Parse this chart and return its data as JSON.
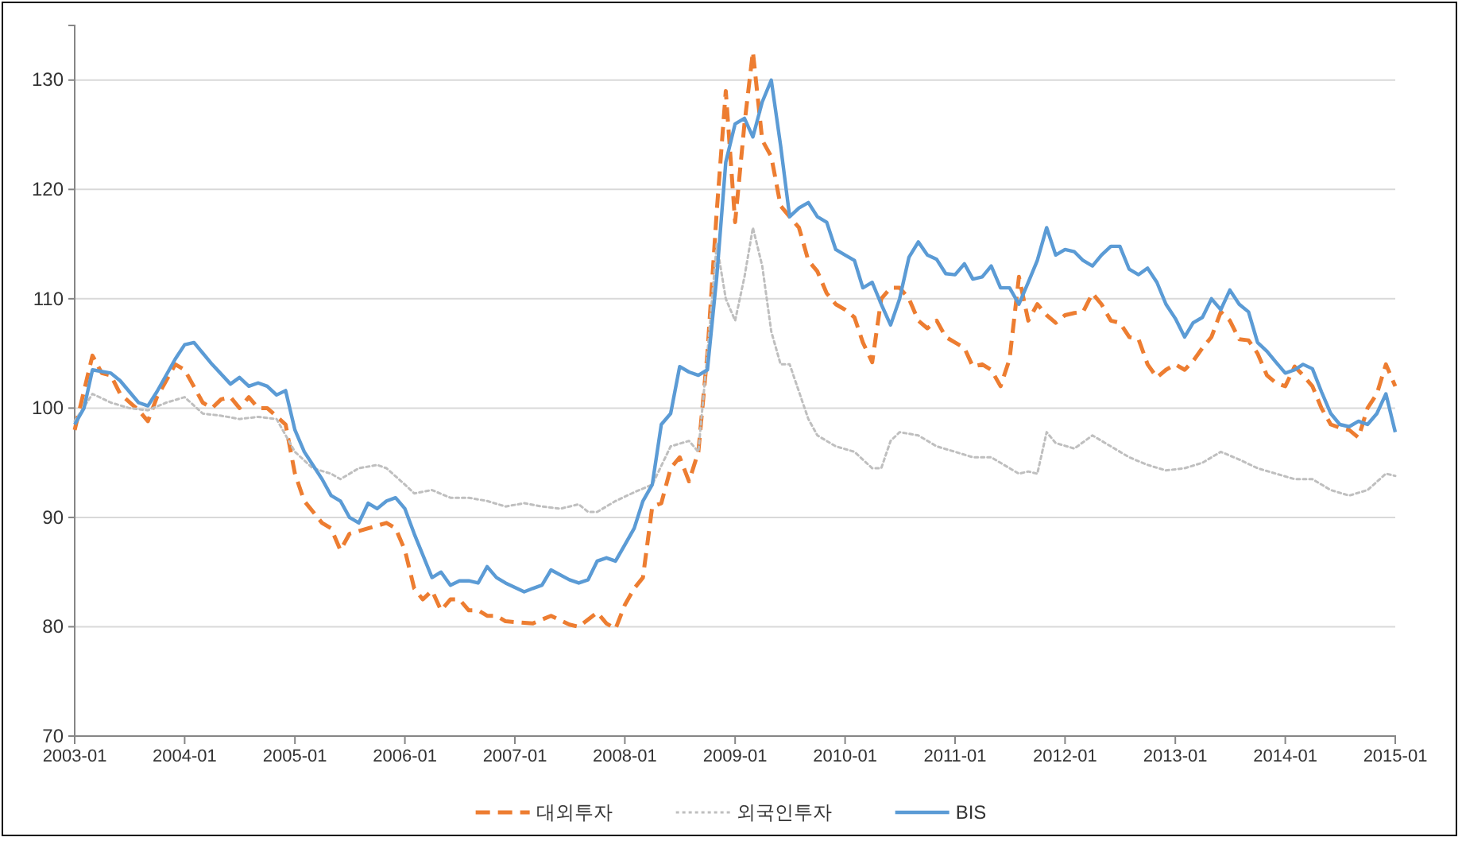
{
  "chart_data": {
    "type": "line",
    "xlim": [
      "2003-01",
      "2015-01"
    ],
    "ylim": [
      70,
      135
    ],
    "yticks": [
      70,
      80,
      90,
      100,
      110,
      120,
      130
    ],
    "xticks": [
      "2003-01",
      "2004-01",
      "2005-01",
      "2006-01",
      "2007-01",
      "2008-01",
      "2009-01",
      "2010-01",
      "2011-01",
      "2012-01",
      "2013-01",
      "2014-01",
      "2015-01"
    ],
    "grid": "y",
    "legend": "bottom",
    "marker": "none",
    "series": [
      {
        "name": "대외투자",
        "color": "#ed7d31",
        "line_style": "dashed",
        "x": [
          "2003-01",
          "2003-03",
          "2003-04",
          "2003-05",
          "2003-06",
          "2003-08",
          "2003-09",
          "2003-10",
          "2003-12",
          "2004-01",
          "2004-03",
          "2004-04",
          "2004-05",
          "2004-06",
          "2004-07",
          "2004-08",
          "2004-09",
          "2004-10",
          "2004-12",
          "2005-01",
          "2005-02",
          "2005-04",
          "2005-05",
          "2005-06",
          "2005-07",
          "2005-09",
          "2005-11",
          "2005-12",
          "2006-01",
          "2006-02",
          "2006-03",
          "2006-04",
          "2006-05",
          "2006-06",
          "2006-07",
          "2006-08",
          "2006-09",
          "2006-10",
          "2006-11",
          "2006-12",
          "2007-03",
          "2007-05",
          "2007-07",
          "2007-08",
          "2007-10",
          "2007-11",
          "2007-12",
          "2008-01",
          "2008-02",
          "2008-03",
          "2008-04",
          "2008-05",
          "2008-06",
          "2008-07",
          "2008-08",
          "2008-09",
          "2008-10",
          "2008-11",
          "2008-12",
          "2009-01",
          "2009-02",
          "2009-03",
          "2009-04",
          "2009-05",
          "2009-06",
          "2009-07",
          "2009-08",
          "2009-09",
          "2009-10",
          "2009-11",
          "2009-12",
          "2010-01",
          "2010-02",
          "2010-03",
          "2010-04",
          "2010-05",
          "2010-06",
          "2010-07",
          "2010-08",
          "2010-09",
          "2010-10",
          "2010-11",
          "2010-12",
          "2011-01",
          "2011-02",
          "2011-03",
          "2011-04",
          "2011-05",
          "2011-06",
          "2011-07",
          "2011-08",
          "2011-09",
          "2011-10",
          "2011-11",
          "2011-12",
          "2012-01",
          "2012-02",
          "2012-03",
          "2012-04",
          "2012-05",
          "2012-06",
          "2012-07",
          "2012-08",
          "2012-09",
          "2012-10",
          "2012-11",
          "2012-12",
          "2013-01",
          "2013-02",
          "2013-03",
          "2013-04",
          "2013-05",
          "2013-06",
          "2013-07",
          "2013-08",
          "2013-09",
          "2013-10",
          "2013-11",
          "2013-12",
          "2014-01",
          "2014-02",
          "2014-03",
          "2014-04",
          "2014-05",
          "2014-06",
          "2014-07",
          "2014-08",
          "2014-09",
          "2014-10",
          "2014-11",
          "2014-12",
          "2015-01"
        ],
        "values": [
          98,
          104.8,
          103.2,
          103,
          101.3,
          99.8,
          98.8,
          101,
          104,
          103.5,
          100.5,
          100,
          100.8,
          101,
          100,
          101,
          100,
          100,
          98.5,
          94,
          91.5,
          89.5,
          89,
          87,
          88.5,
          89,
          89.5,
          89,
          87,
          83.5,
          82.5,
          83.3,
          81.5,
          82.5,
          82.5,
          81.5,
          81.5,
          81,
          81,
          80.5,
          80.3,
          81,
          80.2,
          80,
          81.3,
          80.3,
          79.8,
          82,
          83.5,
          84.5,
          91,
          91.3,
          94.5,
          95.5,
          93.3,
          96,
          105,
          118,
          129,
          117,
          126,
          132.6,
          124.5,
          123,
          118.5,
          117.5,
          116.5,
          113.5,
          112.5,
          110.5,
          109.5,
          109,
          108.3,
          106,
          104.2,
          110,
          111,
          111,
          110,
          108,
          107.3,
          108,
          106.5,
          106,
          105.5,
          103.8,
          104,
          103.5,
          102,
          104.5,
          112,
          108,
          109.5,
          108.5,
          107.8,
          108.5,
          108.7,
          108.8,
          110.5,
          109.5,
          108,
          107.8,
          106.5,
          106.3,
          104,
          102.8,
          103.5,
          104,
          103.5,
          104.3,
          105.5,
          106.5,
          108.8,
          108,
          106.3,
          106.2,
          105,
          103,
          102.3,
          102,
          103.8,
          103,
          102,
          100,
          98.5,
          98.2,
          98,
          97.3,
          100,
          101.3,
          104,
          102
        ]
      },
      {
        "name": "외국인투자",
        "color": "#bfbfbf",
        "line_style": "dotted",
        "x": [
          "2003-01",
          "2003-03",
          "2003-05",
          "2003-07",
          "2003-09",
          "2003-11",
          "2004-01",
          "2004-03",
          "2004-05",
          "2004-07",
          "2004-09",
          "2004-11",
          "2005-01",
          "2005-03",
          "2005-05",
          "2005-06",
          "2005-08",
          "2005-10",
          "2005-11",
          "2006-01",
          "2006-02",
          "2006-04",
          "2006-06",
          "2006-08",
          "2006-10",
          "2006-12",
          "2007-02",
          "2007-04",
          "2007-06",
          "2007-08",
          "2007-09",
          "2007-10",
          "2007-12",
          "2008-02",
          "2008-04",
          "2008-06",
          "2008-08",
          "2008-09",
          "2008-10",
          "2008-11",
          "2008-12",
          "2009-01",
          "2009-02",
          "2009-03",
          "2009-04",
          "2009-05",
          "2009-06",
          "2009-07",
          "2009-08",
          "2009-09",
          "2009-10",
          "2009-12",
          "2010-02",
          "2010-04",
          "2010-05",
          "2010-06",
          "2010-07",
          "2010-09",
          "2010-11",
          "2011-01",
          "2011-03",
          "2011-05",
          "2011-07",
          "2011-08",
          "2011-09",
          "2011-10",
          "2011-11",
          "2011-12",
          "2012-02",
          "2012-04",
          "2012-06",
          "2012-08",
          "2012-10",
          "2012-12",
          "2013-02",
          "2013-04",
          "2013-06",
          "2013-08",
          "2013-10",
          "2013-12",
          "2014-02",
          "2014-04",
          "2014-06",
          "2014-08",
          "2014-10",
          "2014-12",
          "2015-01"
        ],
        "values": [
          98.8,
          101.3,
          100.5,
          100,
          99.8,
          100.5,
          101,
          99.5,
          99.3,
          99,
          99.2,
          99,
          96,
          94.5,
          94,
          93.5,
          94.5,
          94.8,
          94.5,
          93,
          92.2,
          92.5,
          91.8,
          91.8,
          91.5,
          91,
          91.3,
          91,
          90.8,
          91.2,
          90.5,
          90.5,
          91.5,
          92.3,
          93,
          96.5,
          97,
          96,
          105,
          115,
          110,
          108,
          112,
          116.5,
          113,
          107,
          104,
          104,
          101.5,
          99,
          97.5,
          96.5,
          96,
          94.5,
          94.5,
          97,
          97.8,
          97.5,
          96.5,
          96,
          95.5,
          95.5,
          94.5,
          94,
          94.2,
          94,
          97.8,
          96.8,
          96.3,
          97.5,
          96.5,
          95.5,
          94.8,
          94.3,
          94.5,
          95,
          96,
          95.3,
          94.5,
          94,
          93.5,
          93.5,
          92.5,
          92,
          92.5,
          94,
          93.8
        ]
      },
      {
        "name": "BIS",
        "color": "#5b9bd5",
        "line_style": "solid",
        "x": [
          "2003-01",
          "2003-02",
          "2003-03",
          "2003-05",
          "2003-06",
          "2003-08",
          "2003-09",
          "2003-10",
          "2003-12",
          "2004-01",
          "2004-02",
          "2004-04",
          "2004-06",
          "2004-07",
          "2004-08",
          "2004-09",
          "2004-10",
          "2004-11",
          "2004-12",
          "2005-01",
          "2005-02",
          "2005-04",
          "2005-05",
          "2005-06",
          "2005-07",
          "2005-08",
          "2005-09",
          "2005-10",
          "2005-11",
          "2005-12",
          "2006-01",
          "2006-02",
          "2006-04",
          "2006-05",
          "2006-06",
          "2006-07",
          "2006-08",
          "2006-09",
          "2006-10",
          "2006-11",
          "2006-12",
          "2007-02",
          "2007-03",
          "2007-04",
          "2007-05",
          "2007-07",
          "2007-08",
          "2007-09",
          "2007-10",
          "2007-11",
          "2007-12",
          "2008-01",
          "2008-02",
          "2008-03",
          "2008-04",
          "2008-05",
          "2008-06",
          "2008-07",
          "2008-08",
          "2008-09",
          "2008-10",
          "2008-11",
          "2008-12",
          "2009-01",
          "2009-02",
          "2009-03",
          "2009-04",
          "2009-05",
          "2009-06",
          "2009-07",
          "2009-08",
          "2009-09",
          "2009-10",
          "2009-11",
          "2009-12",
          "2010-01",
          "2010-02",
          "2010-03",
          "2010-04",
          "2010-05",
          "2010-06",
          "2010-07",
          "2010-08",
          "2010-09",
          "2010-10",
          "2010-11",
          "2010-12",
          "2011-01",
          "2011-02",
          "2011-03",
          "2011-04",
          "2011-05",
          "2011-06",
          "2011-07",
          "2011-08",
          "2011-09",
          "2011-10",
          "2011-11",
          "2011-12",
          "2012-01",
          "2012-02",
          "2012-03",
          "2012-04",
          "2012-05",
          "2012-06",
          "2012-07",
          "2012-08",
          "2012-09",
          "2012-10",
          "2012-11",
          "2012-12",
          "2013-01",
          "2013-02",
          "2013-03",
          "2013-04",
          "2013-05",
          "2013-06",
          "2013-07",
          "2013-08",
          "2013-09",
          "2013-10",
          "2013-11",
          "2013-12",
          "2014-01",
          "2014-02",
          "2014-03",
          "2014-04",
          "2014-05",
          "2014-06",
          "2014-07",
          "2014-08",
          "2014-09",
          "2014-10",
          "2014-11",
          "2014-12",
          "2015-01"
        ],
        "values": [
          98.5,
          100,
          103.5,
          103.2,
          102.5,
          100.5,
          100.2,
          101.5,
          104.5,
          105.8,
          106,
          104,
          102.2,
          102.8,
          102,
          102.3,
          102,
          101.2,
          101.6,
          98,
          96,
          93.5,
          92,
          91.5,
          90,
          89.5,
          91.3,
          90.8,
          91.5,
          91.8,
          90.8,
          88.5,
          84.5,
          85,
          83.8,
          84.2,
          84.2,
          84,
          85.5,
          84.5,
          84,
          83.2,
          83.5,
          83.8,
          85.2,
          84.3,
          84,
          84.3,
          86,
          86.3,
          86,
          87.5,
          89,
          91.5,
          93,
          98.5,
          99.5,
          103.8,
          103.3,
          103,
          103.5,
          112,
          122.5,
          126,
          126.5,
          124.8,
          128,
          130,
          124,
          117.5,
          118.3,
          118.8,
          117.5,
          117,
          114.5,
          114,
          113.5,
          111,
          111.5,
          109.5,
          107.6,
          110,
          113.8,
          115.2,
          114,
          113.6,
          112.3,
          112.2,
          113.2,
          111.8,
          112,
          113,
          111,
          111,
          109.5,
          111.5,
          113.5,
          116.5,
          114,
          114.5,
          114.3,
          113.5,
          113,
          114,
          114.8,
          114.8,
          112.7,
          112.2,
          112.8,
          111.5,
          109.5,
          108.2,
          106.5,
          107.8,
          108.3,
          110,
          109,
          110.8,
          109.5,
          108.8,
          106,
          105.2,
          104.2,
          103.2,
          103.5,
          104,
          103.6,
          101.5,
          99.5,
          98.5,
          98.3,
          98.8,
          98.5,
          99.5,
          101.3,
          97.8
        ]
      }
    ]
  }
}
